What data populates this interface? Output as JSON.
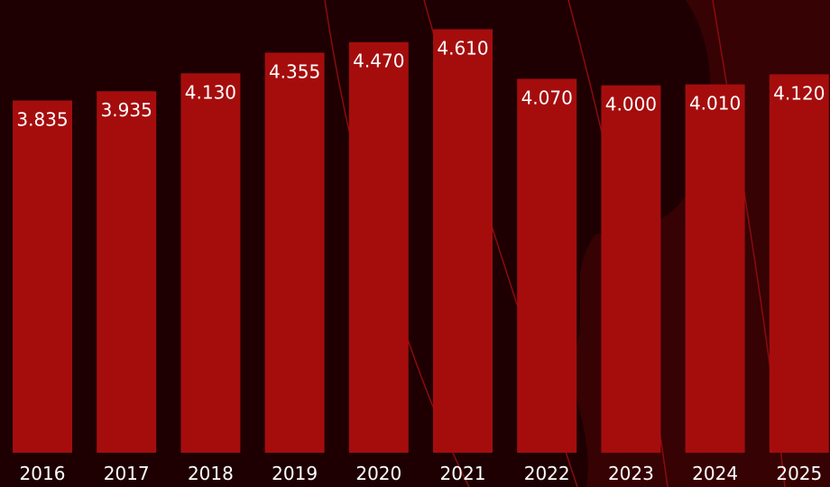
{
  "colors": {
    "background": "#1e0002",
    "bar": "#a50d0d",
    "text": "#ffffff",
    "decor_line": "#8a0b0f"
  },
  "chart_data": {
    "type": "bar",
    "title": "",
    "xlabel": "",
    "ylabel": "",
    "categories": [
      "2016",
      "2017",
      "2018",
      "2019",
      "2020",
      "2021",
      "2022",
      "2023",
      "2024",
      "2025"
    ],
    "values": [
      3.835,
      3.935,
      4.13,
      4.355,
      4.47,
      4.61,
      4.07,
      4.0,
      4.01,
      4.12
    ],
    "data_labels": [
      "3.835",
      "3.935",
      "4.130",
      "4.355",
      "4.470",
      "4.610",
      "4.070",
      "4.000",
      "4.010",
      "4.120"
    ],
    "ylim": [
      0,
      4.85
    ],
    "grid": false,
    "legend": "none"
  }
}
